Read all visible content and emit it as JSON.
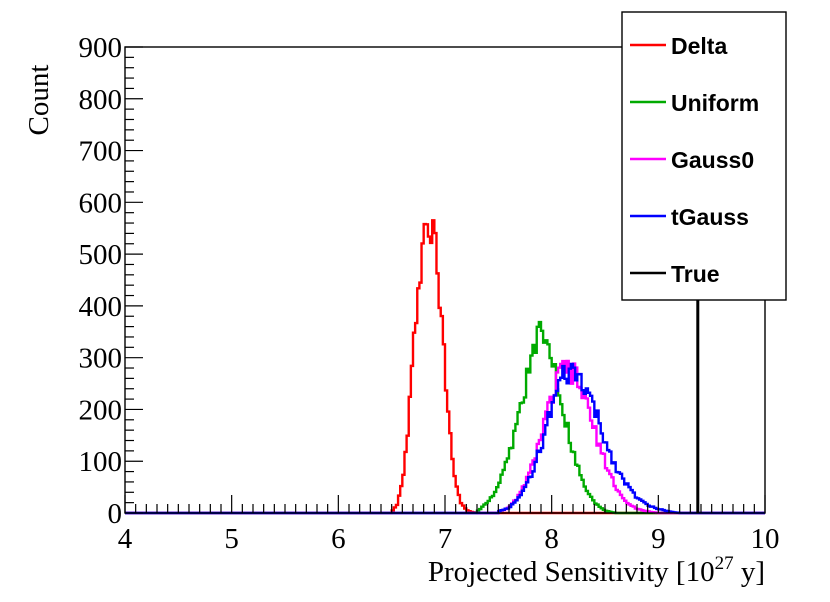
{
  "chart_data": {
    "type": "histogram",
    "title": "",
    "xlabel": "Projected Sensitivity [10",
    "xlabel_sup": "27",
    "xlabel_tail": " y]",
    "ylabel": "Count",
    "xlim": [
      4,
      10
    ],
    "ylim": [
      0,
      900
    ],
    "xticks": [
      "4",
      "5",
      "6",
      "7",
      "8",
      "9",
      "10"
    ],
    "yticks": [
      "0",
      "100",
      "200",
      "300",
      "400",
      "500",
      "600",
      "700",
      "800",
      "900"
    ],
    "legend_position": "top-right",
    "series": [
      {
        "name": "Delta",
        "color": "#ff0000",
        "x": [
          6.5,
          6.55,
          6.6,
          6.65,
          6.7,
          6.75,
          6.8,
          6.85,
          6.9,
          6.95,
          7.0,
          7.05,
          7.1,
          7.15,
          7.2,
          7.25,
          7.3
        ],
        "y": [
          3,
          15,
          60,
          150,
          300,
          450,
          540,
          560,
          530,
          420,
          280,
          150,
          60,
          20,
          6,
          2,
          0
        ]
      },
      {
        "name": "Uniform",
        "color": "#00aa00",
        "x": [
          7.3,
          7.4,
          7.5,
          7.6,
          7.7,
          7.8,
          7.9,
          8.0,
          8.1,
          8.2,
          8.3,
          8.4,
          8.5,
          8.6
        ],
        "y": [
          3,
          20,
          50,
          110,
          200,
          290,
          350,
          310,
          210,
          120,
          55,
          20,
          5,
          0
        ]
      },
      {
        "name": "Gauss0",
        "color": "#ff00ff",
        "x": [
          7.5,
          7.6,
          7.7,
          7.8,
          7.9,
          8.0,
          8.1,
          8.2,
          8.3,
          8.4,
          8.5,
          8.6,
          8.7,
          8.8,
          8.9,
          9.0
        ],
        "y": [
          3,
          10,
          35,
          80,
          150,
          220,
          280,
          270,
          230,
          160,
          100,
          50,
          20,
          8,
          3,
          0
        ]
      },
      {
        "name": "tGauss",
        "color": "#0000ff",
        "x": [
          7.5,
          7.6,
          7.7,
          7.8,
          7.9,
          8.0,
          8.1,
          8.2,
          8.3,
          8.4,
          8.5,
          8.6,
          8.7,
          8.8,
          8.9,
          9.0,
          9.1,
          9.2
        ],
        "y": [
          3,
          10,
          30,
          70,
          130,
          200,
          260,
          270,
          250,
          200,
          140,
          90,
          55,
          30,
          15,
          8,
          3,
          0
        ]
      },
      {
        "name": "True",
        "color": "#000000",
        "type": "vline",
        "x": 9.37
      }
    ]
  }
}
